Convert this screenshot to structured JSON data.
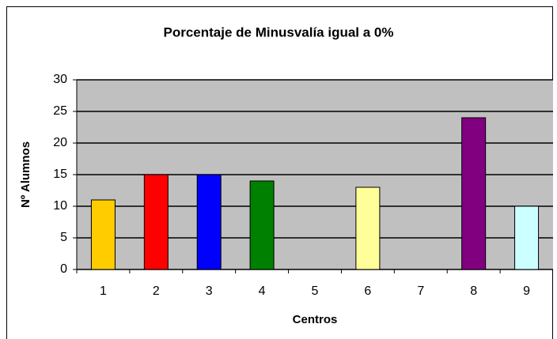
{
  "chart_data": {
    "type": "bar",
    "title": "Porcentaje de Minusvalía igual a 0%",
    "xlabel": "Centros",
    "ylabel": "Nº Alumnos",
    "categories": [
      "1",
      "2",
      "3",
      "4",
      "5",
      "6",
      "7",
      "8",
      "9"
    ],
    "values": [
      11,
      15,
      15,
      14,
      0,
      13,
      0,
      24,
      10
    ],
    "colors": [
      "#FFCC00",
      "#FF0000",
      "#0000FF",
      "#008000",
      null,
      "#FFFF99",
      null,
      "#800080",
      "#CCFFFF"
    ],
    "ylim": [
      0,
      30
    ],
    "yticks": [
      0,
      5,
      10,
      15,
      20,
      25,
      30
    ],
    "grid": true
  }
}
